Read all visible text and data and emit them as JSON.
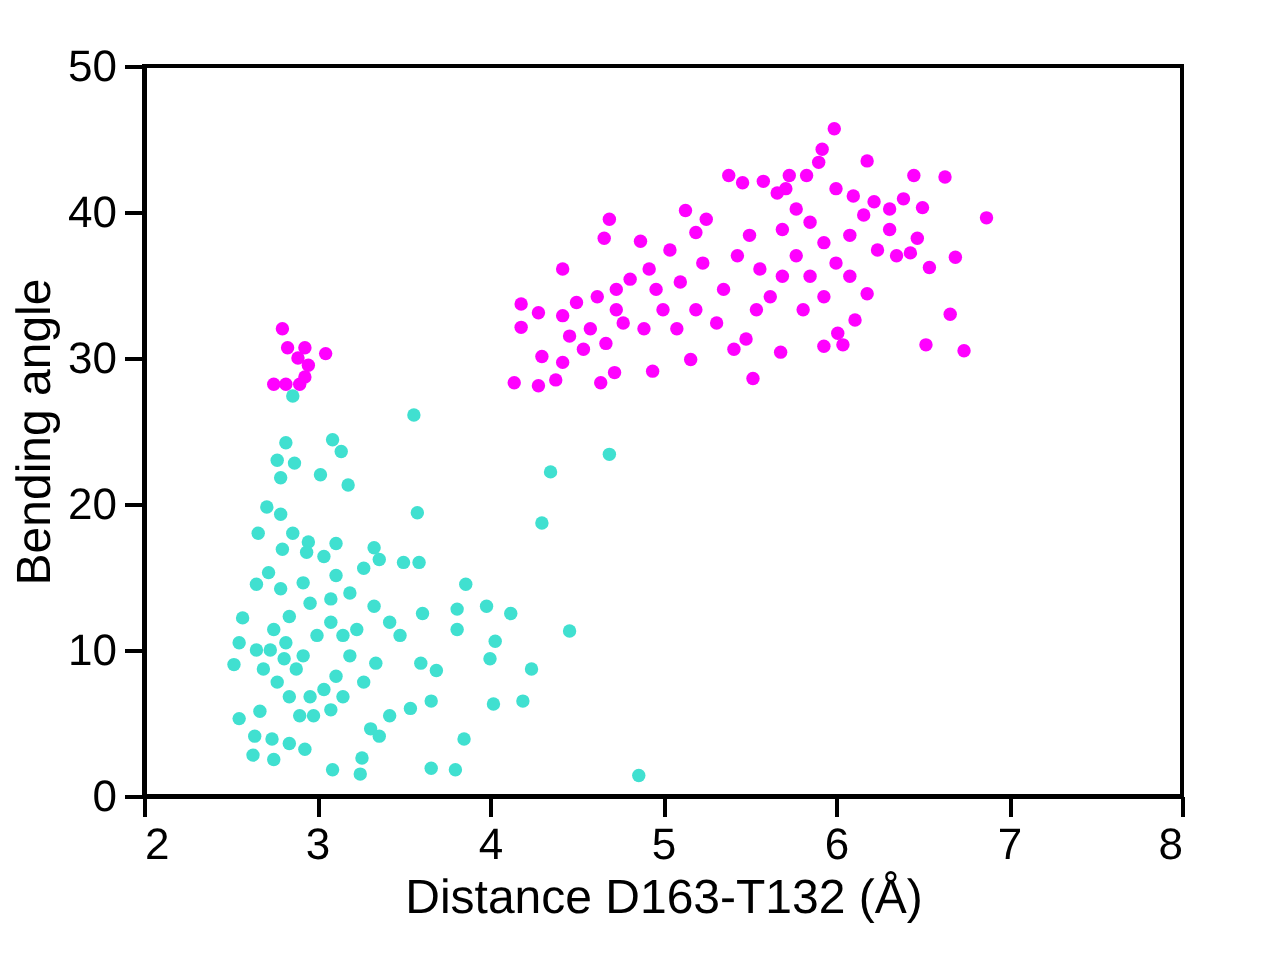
{
  "chart_data": {
    "type": "scatter",
    "xlabel": "Distance D163-T132 (Å)",
    "ylabel": "Bending angle",
    "xlim": [
      2,
      8
    ],
    "ylim": [
      0,
      50
    ],
    "xticks": [
      2,
      3,
      4,
      5,
      6,
      7,
      8
    ],
    "yticks": [
      0,
      10,
      20,
      30,
      40,
      50
    ],
    "grid": false,
    "marker": "circle",
    "series": [
      {
        "color": "#40e0d0",
        "x": [
          3.56,
          4.69,
          4.35,
          4.3,
          2.86,
          2.82,
          3.09,
          3.14,
          2.77,
          2.87,
          2.79,
          3.02,
          3.18,
          3.58,
          2.71,
          2.79,
          2.66,
          2.86,
          4.46,
          4.86,
          4.24,
          4.19,
          4.02,
          4.03,
          3.98,
          4.12,
          3.86,
          3.81,
          3.81,
          4.0,
          3.85,
          3.8,
          3.66,
          3.66,
          3.54,
          3.59,
          3.5,
          3.61,
          3.6,
          3.69,
          3.48,
          3.42,
          3.42,
          3.26,
          3.25,
          3.09,
          3.36,
          3.31,
          3.34,
          3.33,
          3.27,
          3.36,
          3.33,
          3.11,
          2.95,
          2.52,
          2.55,
          2.55,
          2.64,
          2.63,
          2.74,
          2.75,
          2.84,
          2.93,
          2.98,
          3.08,
          2.67,
          2.57,
          2.65,
          2.72,
          2.8,
          2.94,
          3.04,
          3.11,
          3.19,
          3.23,
          3.19,
          3.11,
          3.04,
          2.84,
          2.77,
          2.69,
          2.65,
          2.75,
          2.84,
          2.96,
          2.92,
          2.79,
          2.82,
          2.92,
          3.0,
          3.08,
          2.88,
          2.81,
          2.73,
          2.96,
          2.9,
          3.15,
          3.27,
          3.15,
          3.08
        ],
        "values": [
          26.1,
          23.4,
          22.2,
          18.7,
          27.4,
          24.2,
          24.4,
          23.6,
          23.0,
          22.8,
          21.8,
          22.0,
          21.3,
          19.4,
          19.8,
          19.3,
          18.0,
          18.0,
          11.3,
          1.4,
          8.7,
          6.5,
          6.3,
          10.6,
          13.0,
          12.5,
          14.5,
          12.8,
          11.4,
          9.4,
          3.9,
          1.8,
          1.9,
          6.5,
          6.0,
          16.0,
          16.0,
          12.5,
          9.1,
          8.6,
          11.0,
          11.9,
          5.5,
          2.6,
          1.5,
          1.8,
          4.1,
          4.6,
          9.1,
          13.0,
          15.6,
          16.2,
          17.0,
          17.3,
          17.4,
          9.0,
          10.5,
          5.3,
          4.1,
          2.8,
          3.9,
          2.5,
          3.6,
          3.2,
          5.5,
          5.9,
          5.8,
          12.2,
          14.5,
          15.3,
          16.9,
          16.7,
          16.4,
          15.1,
          13.9,
          11.4,
          9.6,
          8.2,
          7.3,
          6.8,
          7.8,
          8.7,
          10.0,
          11.4,
          12.3,
          13.2,
          14.6,
          14.2,
          10.5,
          9.6,
          11.0,
          11.9,
          8.7,
          9.4,
          10.0,
          6.8,
          5.5,
          6.8,
          7.8,
          11.0,
          13.5
        ]
      },
      {
        "color": "#ff00ff",
        "x": [
          2.8,
          2.83,
          2.93,
          3.05,
          2.89,
          2.95,
          2.93,
          2.75,
          2.82,
          2.9,
          5.99,
          5.92,
          6.18,
          5.9,
          5.38,
          5.46,
          5.58,
          5.73,
          5.83,
          6.45,
          6.63,
          6.87,
          4.69,
          5.13,
          4.87,
          4.66,
          4.42,
          4.18,
          4.18,
          4.28,
          4.3,
          4.14,
          4.28,
          4.38,
          4.64,
          4.72,
          4.94,
          5.16,
          5.52,
          5.41,
          5.68,
          5.48,
          5.93,
          6.04,
          6.11,
          6.01,
          6.52,
          6.74,
          6.66,
          6.54,
          6.69,
          6.47,
          6.5,
          6.39,
          6.31,
          6.22,
          6.1,
          6.0,
          5.66,
          5.71,
          4.58,
          4.5,
          4.42,
          4.54,
          4.42,
          4.67,
          4.77,
          4.73,
          4.81,
          4.92,
          5.0,
          5.08,
          4.89,
          4.96,
          5.1,
          5.04,
          5.19,
          5.25,
          5.23,
          5.19,
          5.31,
          5.35,
          5.43,
          5.5,
          5.56,
          5.62,
          5.54,
          5.69,
          5.77,
          5.69,
          5.77,
          5.85,
          5.93,
          6.0,
          5.85,
          5.93,
          5.81,
          6.08,
          6.16,
          6.24,
          6.35,
          6.31,
          6.08,
          6.18,
          6.43,
          4.73,
          4.62,
          4.46
        ],
        "values": [
          32.0,
          30.7,
          30.7,
          30.3,
          30.0,
          29.5,
          28.7,
          28.2,
          28.2,
          28.2,
          45.7,
          44.3,
          43.5,
          43.4,
          42.5,
          42.0,
          42.1,
          42.5,
          42.5,
          42.5,
          42.4,
          39.6,
          39.5,
          40.1,
          38.0,
          38.2,
          36.1,
          33.7,
          32.1,
          33.1,
          30.1,
          28.3,
          28.1,
          28.5,
          28.3,
          29.0,
          29.1,
          29.9,
          28.6,
          30.6,
          30.4,
          31.3,
          30.8,
          30.9,
          32.6,
          31.7,
          30.9,
          30.5,
          33.0,
          36.2,
          36.9,
          38.2,
          40.3,
          40.9,
          40.2,
          40.7,
          41.1,
          41.6,
          41.3,
          41.6,
          32.0,
          33.8,
          32.9,
          30.6,
          29.7,
          31.0,
          32.4,
          34.7,
          35.4,
          36.1,
          33.3,
          32.0,
          32.0,
          34.7,
          35.2,
          37.4,
          38.6,
          39.5,
          36.5,
          33.3,
          32.4,
          34.7,
          37.0,
          38.4,
          36.1,
          34.2,
          33.3,
          35.6,
          37.0,
          38.8,
          40.2,
          39.3,
          37.9,
          36.5,
          35.6,
          34.2,
          33.3,
          38.4,
          39.8,
          37.4,
          37.0,
          38.8,
          35.6,
          34.4,
          37.2,
          33.3,
          34.2,
          31.5
        ]
      }
    ]
  }
}
